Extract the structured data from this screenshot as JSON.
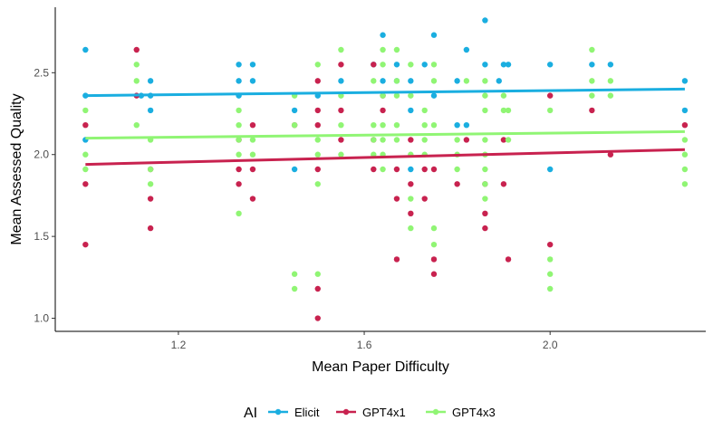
{
  "chart_data": {
    "type": "scatter",
    "xlabel": "Mean Paper Difficulty",
    "ylabel": "Mean Assessed Quality",
    "xlim": [
      0.935,
      2.335
    ],
    "ylim": [
      0.92,
      2.9
    ],
    "x_ticks": [
      1.2,
      1.6,
      2.0
    ],
    "y_ticks": [
      1.0,
      1.5,
      2.0,
      2.5
    ],
    "x_tick_labels": [
      "1.2",
      "1.6",
      "2.0"
    ],
    "y_tick_labels": [
      "1.0",
      "1.5",
      "2.0",
      "2.5"
    ],
    "grid": false,
    "legend": {
      "title": "AI",
      "position": "bottom"
    },
    "series": [
      {
        "name": "Elicit",
        "color": "#1aaee0",
        "trend": [
          [
            1.0,
            2.36
          ],
          [
            2.29,
            2.4
          ]
        ],
        "points": [
          [
            1.0,
            2.64
          ],
          [
            1.0,
            2.36
          ],
          [
            1.0,
            2.09
          ],
          [
            1.12,
            2.36
          ],
          [
            1.14,
            2.45
          ],
          [
            1.14,
            2.36
          ],
          [
            1.14,
            2.27
          ],
          [
            1.33,
            2.55
          ],
          [
            1.33,
            2.45
          ],
          [
            1.33,
            2.36
          ],
          [
            1.36,
            2.55
          ],
          [
            1.36,
            2.45
          ],
          [
            1.45,
            2.27
          ],
          [
            1.45,
            1.91
          ],
          [
            1.5,
            2.36
          ],
          [
            1.55,
            2.45
          ],
          [
            1.62,
            2.55
          ],
          [
            1.64,
            2.73
          ],
          [
            1.64,
            2.45
          ],
          [
            1.67,
            2.55
          ],
          [
            1.67,
            2.45
          ],
          [
            1.7,
            2.45
          ],
          [
            1.7,
            2.27
          ],
          [
            1.7,
            1.91
          ],
          [
            1.73,
            2.55
          ],
          [
            1.75,
            2.73
          ],
          [
            1.75,
            2.36
          ],
          [
            1.8,
            2.45
          ],
          [
            1.8,
            2.18
          ],
          [
            1.82,
            2.64
          ],
          [
            1.82,
            2.18
          ],
          [
            1.86,
            2.82
          ],
          [
            1.86,
            2.55
          ],
          [
            1.89,
            2.45
          ],
          [
            1.9,
            2.55
          ],
          [
            1.91,
            2.55
          ],
          [
            2.0,
            2.55
          ],
          [
            2.0,
            1.91
          ],
          [
            2.09,
            2.55
          ],
          [
            2.13,
            2.55
          ],
          [
            2.29,
            2.45
          ],
          [
            2.29,
            2.27
          ]
        ]
      },
      {
        "name": "GPT4x1",
        "color": "#c8224f",
        "trend": [
          [
            1.0,
            1.94
          ],
          [
            2.29,
            2.03
          ]
        ],
        "points": [
          [
            1.0,
            2.18
          ],
          [
            1.0,
            1.82
          ],
          [
            1.0,
            1.45
          ],
          [
            1.11,
            2.64
          ],
          [
            1.11,
            2.36
          ],
          [
            1.14,
            1.91
          ],
          [
            1.14,
            1.73
          ],
          [
            1.14,
            1.55
          ],
          [
            1.33,
            2.09
          ],
          [
            1.33,
            1.91
          ],
          [
            1.33,
            1.82
          ],
          [
            1.36,
            2.18
          ],
          [
            1.36,
            1.91
          ],
          [
            1.36,
            1.73
          ],
          [
            1.45,
            2.18
          ],
          [
            1.5,
            2.45
          ],
          [
            1.5,
            2.27
          ],
          [
            1.5,
            2.18
          ],
          [
            1.5,
            1.91
          ],
          [
            1.5,
            1.18
          ],
          [
            1.5,
            1.0
          ],
          [
            1.55,
            2.55
          ],
          [
            1.55,
            2.27
          ],
          [
            1.55,
            2.09
          ],
          [
            1.62,
            2.55
          ],
          [
            1.62,
            2.09
          ],
          [
            1.62,
            1.91
          ],
          [
            1.64,
            2.36
          ],
          [
            1.64,
            2.27
          ],
          [
            1.67,
            1.91
          ],
          [
            1.67,
            1.73
          ],
          [
            1.67,
            1.36
          ],
          [
            1.7,
            2.09
          ],
          [
            1.7,
            1.82
          ],
          [
            1.7,
            1.64
          ],
          [
            1.73,
            1.91
          ],
          [
            1.73,
            1.73
          ],
          [
            1.75,
            1.91
          ],
          [
            1.75,
            1.36
          ],
          [
            1.75,
            1.27
          ],
          [
            1.8,
            1.82
          ],
          [
            1.82,
            2.09
          ],
          [
            1.86,
            1.82
          ],
          [
            1.86,
            1.64
          ],
          [
            1.86,
            1.55
          ],
          [
            1.9,
            2.09
          ],
          [
            1.9,
            1.82
          ],
          [
            1.91,
            1.36
          ],
          [
            2.0,
            2.36
          ],
          [
            2.0,
            1.45
          ],
          [
            2.09,
            2.27
          ],
          [
            2.13,
            2.0
          ],
          [
            2.29,
            2.18
          ]
        ]
      },
      {
        "name": "GPT4x3",
        "color": "#90f574",
        "trend": [
          [
            1.0,
            2.1
          ],
          [
            2.29,
            2.14
          ]
        ],
        "points": [
          [
            1.0,
            2.27
          ],
          [
            1.0,
            2.0
          ],
          [
            1.0,
            1.91
          ],
          [
            1.11,
            2.55
          ],
          [
            1.11,
            2.45
          ],
          [
            1.11,
            2.18
          ],
          [
            1.14,
            2.09
          ],
          [
            1.14,
            1.91
          ],
          [
            1.14,
            1.82
          ],
          [
            1.33,
            2.27
          ],
          [
            1.33,
            2.18
          ],
          [
            1.33,
            2.09
          ],
          [
            1.33,
            2.0
          ],
          [
            1.33,
            1.64
          ],
          [
            1.36,
            2.09
          ],
          [
            1.36,
            2.0
          ],
          [
            1.45,
            2.36
          ],
          [
            1.45,
            2.18
          ],
          [
            1.45,
            1.27
          ],
          [
            1.45,
            1.18
          ],
          [
            1.5,
            2.55
          ],
          [
            1.5,
            2.09
          ],
          [
            1.5,
            2.0
          ],
          [
            1.5,
            1.82
          ],
          [
            1.5,
            1.27
          ],
          [
            1.55,
            2.64
          ],
          [
            1.55,
            2.36
          ],
          [
            1.55,
            2.18
          ],
          [
            1.55,
            2.0
          ],
          [
            1.62,
            2.45
          ],
          [
            1.62,
            2.18
          ],
          [
            1.62,
            2.09
          ],
          [
            1.62,
            2.0
          ],
          [
            1.64,
            2.64
          ],
          [
            1.64,
            2.55
          ],
          [
            1.64,
            2.36
          ],
          [
            1.64,
            2.18
          ],
          [
            1.64,
            2.09
          ],
          [
            1.64,
            2.0
          ],
          [
            1.64,
            1.91
          ],
          [
            1.67,
            2.64
          ],
          [
            1.67,
            2.45
          ],
          [
            1.67,
            2.36
          ],
          [
            1.67,
            2.18
          ],
          [
            1.67,
            2.09
          ],
          [
            1.7,
            2.55
          ],
          [
            1.7,
            2.36
          ],
          [
            1.7,
            2.0
          ],
          [
            1.7,
            1.73
          ],
          [
            1.7,
            1.55
          ],
          [
            1.73,
            2.27
          ],
          [
            1.73,
            2.18
          ],
          [
            1.73,
            2.09
          ],
          [
            1.73,
            2.0
          ],
          [
            1.75,
            2.55
          ],
          [
            1.75,
            2.45
          ],
          [
            1.75,
            2.18
          ],
          [
            1.75,
            1.55
          ],
          [
            1.75,
            1.45
          ],
          [
            1.8,
            2.09
          ],
          [
            1.8,
            2.0
          ],
          [
            1.8,
            1.91
          ],
          [
            1.82,
            2.45
          ],
          [
            1.86,
            2.45
          ],
          [
            1.86,
            2.36
          ],
          [
            1.86,
            2.27
          ],
          [
            1.86,
            2.09
          ],
          [
            1.86,
            2.0
          ],
          [
            1.86,
            1.91
          ],
          [
            1.86,
            1.82
          ],
          [
            1.86,
            1.73
          ],
          [
            1.9,
            2.36
          ],
          [
            1.9,
            2.27
          ],
          [
            1.91,
            2.27
          ],
          [
            1.91,
            2.09
          ],
          [
            2.0,
            2.27
          ],
          [
            2.0,
            1.36
          ],
          [
            2.0,
            1.27
          ],
          [
            2.0,
            1.18
          ],
          [
            2.09,
            2.64
          ],
          [
            2.09,
            2.45
          ],
          [
            2.09,
            2.36
          ],
          [
            2.13,
            2.45
          ],
          [
            2.13,
            2.36
          ],
          [
            2.29,
            2.09
          ],
          [
            2.29,
            2.0
          ],
          [
            2.29,
            1.91
          ],
          [
            2.29,
            1.82
          ]
        ]
      }
    ]
  }
}
